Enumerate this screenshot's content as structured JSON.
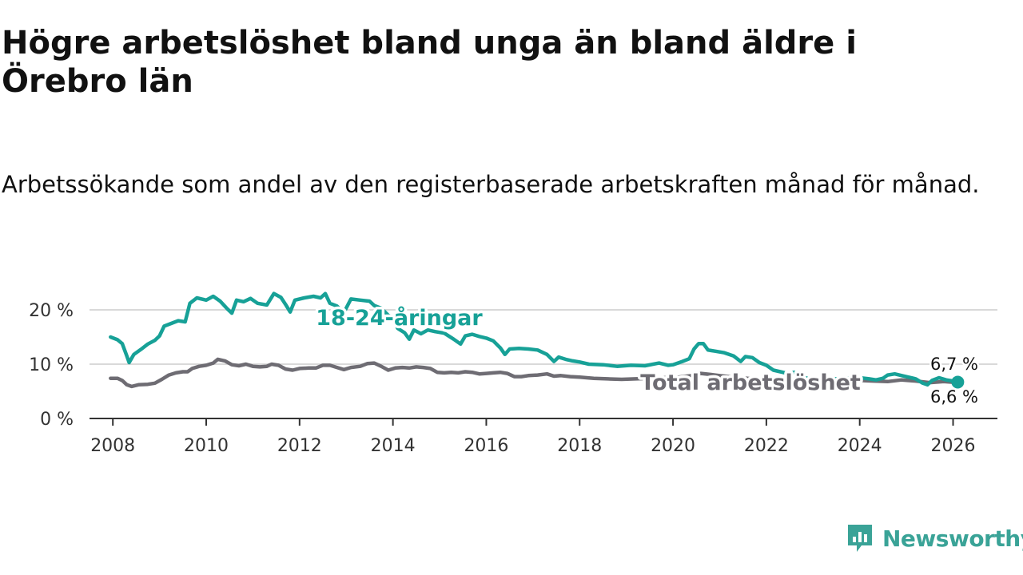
{
  "title": "Högre arbetslöshet bland unga än bland äldre i Örebro län",
  "subtitle": "Arbetssökande som andel av den registerbaserade arbetskraften månad för månad.",
  "brand": {
    "name": "Newsworthy",
    "icon": "newsworthy-logo-icon"
  },
  "colors": {
    "youth": "#17a197",
    "total": "#6e6c73",
    "grid": "#d9d9d9",
    "axis": "#333333",
    "brand": "#3aa397"
  },
  "chart_data": {
    "type": "line",
    "title": "Högre arbetslöshet bland unga än bland äldre i Örebro län",
    "xlabel": "",
    "ylabel": "",
    "xlim": [
      2007.5,
      2026.95
    ],
    "ylim": [
      0,
      25
    ],
    "x_ticks": [
      2008,
      2010,
      2012,
      2014,
      2016,
      2018,
      2020,
      2022,
      2024,
      2026
    ],
    "x_tick_labels": [
      "2008",
      "2010",
      "2012",
      "2014",
      "2016",
      "2018",
      "2020",
      "2022",
      "2024",
      "2026"
    ],
    "y_ticks": [
      0,
      10,
      20
    ],
    "y_tick_labels": [
      "0 %",
      "10 %",
      "20 %"
    ],
    "grid": true,
    "series": [
      {
        "name": "18-24-åringar",
        "label": "18-24-åringar",
        "label_x": 2012.35,
        "label_y": 18.5,
        "end_label": "6,7 %",
        "end_x": 2026.1,
        "end_y": 6.7,
        "points": [
          [
            2007.95,
            15
          ],
          [
            2008.1,
            14.5
          ],
          [
            2008.2,
            13.8
          ],
          [
            2008.3,
            11.5
          ],
          [
            2008.35,
            10.3
          ],
          [
            2008.45,
            11.8
          ],
          [
            2008.6,
            12.7
          ],
          [
            2008.75,
            13.7
          ],
          [
            2008.9,
            14.4
          ],
          [
            2009.0,
            15.2
          ],
          [
            2009.1,
            17
          ],
          [
            2009.25,
            17.5
          ],
          [
            2009.4,
            18
          ],
          [
            2009.55,
            17.8
          ],
          [
            2009.65,
            21.2
          ],
          [
            2009.8,
            22.2
          ],
          [
            2010.0,
            21.8
          ],
          [
            2010.15,
            22.5
          ],
          [
            2010.3,
            21.6
          ],
          [
            2010.45,
            20.2
          ],
          [
            2010.55,
            19.4
          ],
          [
            2010.65,
            21.8
          ],
          [
            2010.8,
            21.5
          ],
          [
            2010.95,
            22.1
          ],
          [
            2011.1,
            21.2
          ],
          [
            2011.3,
            20.9
          ],
          [
            2011.45,
            23
          ],
          [
            2011.6,
            22.3
          ],
          [
            2011.7,
            21
          ],
          [
            2011.8,
            19.6
          ],
          [
            2011.9,
            21.8
          ],
          [
            2012.1,
            22.2
          ],
          [
            2012.3,
            22.5
          ],
          [
            2012.45,
            22.2
          ],
          [
            2012.55,
            23
          ],
          [
            2012.65,
            21.2
          ],
          [
            2012.8,
            20.7
          ],
          [
            2012.95,
            19.5
          ],
          [
            2013.1,
            22
          ],
          [
            2013.3,
            21.8
          ],
          [
            2013.5,
            21.6
          ],
          [
            2013.6,
            20.8
          ],
          [
            2013.75,
            20.3
          ],
          [
            2013.9,
            19
          ],
          [
            2014.0,
            18.5
          ],
          [
            2014.1,
            16.6
          ],
          [
            2014.25,
            15.8
          ],
          [
            2014.35,
            14.6
          ],
          [
            2014.45,
            16.3
          ],
          [
            2014.6,
            15.6
          ],
          [
            2014.75,
            16.3
          ],
          [
            2014.9,
            16.0
          ],
          [
            2015.1,
            15.7
          ],
          [
            2015.3,
            14.6
          ],
          [
            2015.45,
            13.7
          ],
          [
            2015.55,
            15.2
          ],
          [
            2015.7,
            15.5
          ],
          [
            2015.85,
            15.1
          ],
          [
            2016.0,
            14.8
          ],
          [
            2016.15,
            14.3
          ],
          [
            2016.3,
            13.0
          ],
          [
            2016.4,
            11.8
          ],
          [
            2016.5,
            12.8
          ],
          [
            2016.7,
            12.9
          ],
          [
            2016.9,
            12.8
          ],
          [
            2017.1,
            12.6
          ],
          [
            2017.3,
            11.8
          ],
          [
            2017.45,
            10.5
          ],
          [
            2017.55,
            11.3
          ],
          [
            2017.7,
            10.9
          ],
          [
            2017.85,
            10.6
          ],
          [
            2018.0,
            10.4
          ],
          [
            2018.2,
            10.0
          ],
          [
            2018.5,
            9.9
          ],
          [
            2018.8,
            9.6
          ],
          [
            2019.1,
            9.8
          ],
          [
            2019.4,
            9.7
          ],
          [
            2019.7,
            10.2
          ],
          [
            2019.9,
            9.8
          ],
          [
            2020.0,
            9.9
          ],
          [
            2020.2,
            10.5
          ],
          [
            2020.35,
            11.0
          ],
          [
            2020.45,
            12.8
          ],
          [
            2020.55,
            13.8
          ],
          [
            2020.65,
            13.8
          ],
          [
            2020.75,
            12.6
          ],
          [
            2020.9,
            12.4
          ],
          [
            2021.1,
            12.1
          ],
          [
            2021.3,
            11.5
          ],
          [
            2021.45,
            10.5
          ],
          [
            2021.55,
            11.4
          ],
          [
            2021.7,
            11.2
          ],
          [
            2021.85,
            10.3
          ],
          [
            2022.0,
            9.8
          ],
          [
            2022.15,
            8.9
          ],
          [
            2022.3,
            8.6
          ],
          [
            2022.45,
            8.3
          ],
          [
            2022.6,
            8.5
          ],
          [
            2022.75,
            7.8
          ],
          [
            2022.9,
            7.3
          ],
          [
            2023.0,
            7.6
          ],
          [
            2023.15,
            7.1
          ],
          [
            2023.3,
            6.6
          ],
          [
            2023.4,
            7.4
          ],
          [
            2023.55,
            7.2
          ],
          [
            2023.7,
            7.5
          ],
          [
            2023.85,
            7.3
          ],
          [
            2024.0,
            7.5
          ],
          [
            2024.2,
            7.3
          ],
          [
            2024.35,
            7.1
          ],
          [
            2024.5,
            7.4
          ],
          [
            2024.6,
            8
          ],
          [
            2024.75,
            8.2
          ],
          [
            2024.9,
            7.9
          ],
          [
            2025.05,
            7.6
          ],
          [
            2025.2,
            7.3
          ],
          [
            2025.35,
            6.5
          ],
          [
            2025.45,
            6.2
          ],
          [
            2025.55,
            7.0
          ],
          [
            2025.7,
            7.5
          ],
          [
            2025.85,
            7.1
          ],
          [
            2026.0,
            6.9
          ],
          [
            2026.1,
            6.7
          ]
        ]
      },
      {
        "name": "Total arbetslöshet",
        "label": "Total arbetslöshet",
        "label_x": 2019.3,
        "label_y": 6.6,
        "end_label": "6,6 %",
        "end_x": 2026.1,
        "end_y": 6.6,
        "points": [
          [
            2007.95,
            7.4
          ],
          [
            2008.1,
            7.4
          ],
          [
            2008.2,
            7.0
          ],
          [
            2008.3,
            6.2
          ],
          [
            2008.4,
            5.9
          ],
          [
            2008.55,
            6.2
          ],
          [
            2008.75,
            6.3
          ],
          [
            2008.9,
            6.5
          ],
          [
            2009.05,
            7.2
          ],
          [
            2009.2,
            8.0
          ],
          [
            2009.35,
            8.4
          ],
          [
            2009.5,
            8.6
          ],
          [
            2009.6,
            8.6
          ],
          [
            2009.7,
            9.2
          ],
          [
            2009.85,
            9.6
          ],
          [
            2010.0,
            9.8
          ],
          [
            2010.15,
            10.2
          ],
          [
            2010.25,
            10.9
          ],
          [
            2010.4,
            10.6
          ],
          [
            2010.55,
            9.9
          ],
          [
            2010.7,
            9.7
          ],
          [
            2010.85,
            10.0
          ],
          [
            2011.0,
            9.6
          ],
          [
            2011.15,
            9.5
          ],
          [
            2011.3,
            9.6
          ],
          [
            2011.4,
            10.0
          ],
          [
            2011.55,
            9.8
          ],
          [
            2011.7,
            9.1
          ],
          [
            2011.85,
            8.9
          ],
          [
            2012.0,
            9.2
          ],
          [
            2012.2,
            9.3
          ],
          [
            2012.35,
            9.3
          ],
          [
            2012.5,
            9.8
          ],
          [
            2012.65,
            9.8
          ],
          [
            2012.8,
            9.4
          ],
          [
            2012.95,
            9.0
          ],
          [
            2013.1,
            9.4
          ],
          [
            2013.3,
            9.6
          ],
          [
            2013.45,
            10.1
          ],
          [
            2013.6,
            10.2
          ],
          [
            2013.75,
            9.6
          ],
          [
            2013.9,
            8.9
          ],
          [
            2014.05,
            9.3
          ],
          [
            2014.2,
            9.4
          ],
          [
            2014.35,
            9.3
          ],
          [
            2014.5,
            9.5
          ],
          [
            2014.65,
            9.4
          ],
          [
            2014.8,
            9.2
          ],
          [
            2014.95,
            8.5
          ],
          [
            2015.1,
            8.4
          ],
          [
            2015.25,
            8.5
          ],
          [
            2015.4,
            8.4
          ],
          [
            2015.55,
            8.6
          ],
          [
            2015.7,
            8.5
          ],
          [
            2015.85,
            8.2
          ],
          [
            2016.0,
            8.3
          ],
          [
            2016.15,
            8.4
          ],
          [
            2016.3,
            8.5
          ],
          [
            2016.45,
            8.3
          ],
          [
            2016.6,
            7.7
          ],
          [
            2016.75,
            7.7
          ],
          [
            2016.9,
            7.9
          ],
          [
            2017.1,
            8.0
          ],
          [
            2017.3,
            8.2
          ],
          [
            2017.45,
            7.8
          ],
          [
            2017.6,
            7.9
          ],
          [
            2017.8,
            7.7
          ],
          [
            2018.0,
            7.6
          ],
          [
            2018.3,
            7.4
          ],
          [
            2018.6,
            7.3
          ],
          [
            2018.9,
            7.2
          ],
          [
            2019.2,
            7.3
          ],
          [
            2019.5,
            7.4
          ],
          [
            2019.8,
            7.5
          ],
          [
            2020.1,
            7.6
          ],
          [
            2020.4,
            7.9
          ],
          [
            2020.6,
            8.3
          ],
          [
            2020.8,
            8.1
          ],
          [
            2021.0,
            7.9
          ],
          [
            2021.3,
            7.6
          ],
          [
            2021.6,
            7.4
          ],
          [
            2021.9,
            7.3
          ],
          [
            2022.2,
            7.1
          ],
          [
            2022.5,
            7.0
          ],
          [
            2022.8,
            7.0
          ],
          [
            2023.1,
            6.8
          ],
          [
            2023.4,
            6.6
          ],
          [
            2023.7,
            6.8
          ],
          [
            2024.0,
            7.0
          ],
          [
            2024.3,
            6.9
          ],
          [
            2024.6,
            6.8
          ],
          [
            2024.9,
            7.1
          ],
          [
            2025.2,
            6.9
          ],
          [
            2025.5,
            6.6
          ],
          [
            2025.8,
            6.8
          ],
          [
            2026.1,
            6.6
          ]
        ]
      }
    ]
  }
}
